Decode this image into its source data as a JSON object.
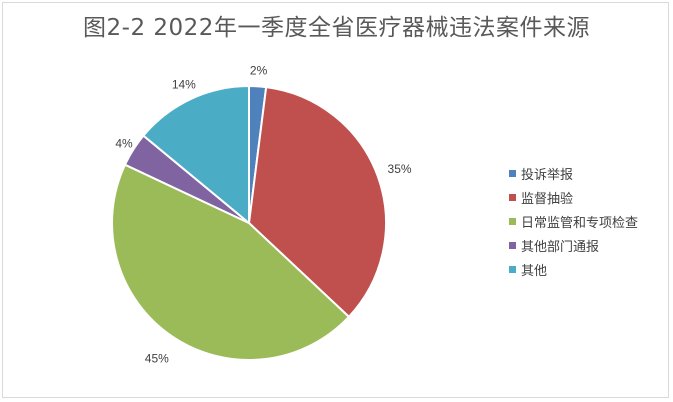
{
  "chart_data": {
    "type": "pie",
    "title": "图2-2  2022年一季度全省医疗器械违法案件来源",
    "categories": [
      "投诉举报",
      "监督抽验",
      "日常监管和专项检查",
      "其他部门通报",
      "其他"
    ],
    "values": [
      2,
      35,
      45,
      4,
      14
    ],
    "data_labels": [
      "2%",
      "35%",
      "45%",
      "4%",
      "14%"
    ],
    "colors": [
      "#4f81bd",
      "#c0504d",
      "#9bbb59",
      "#8064a2",
      "#4bacc6"
    ],
    "legend_position": "right",
    "start_angle": "top, clockwise"
  }
}
